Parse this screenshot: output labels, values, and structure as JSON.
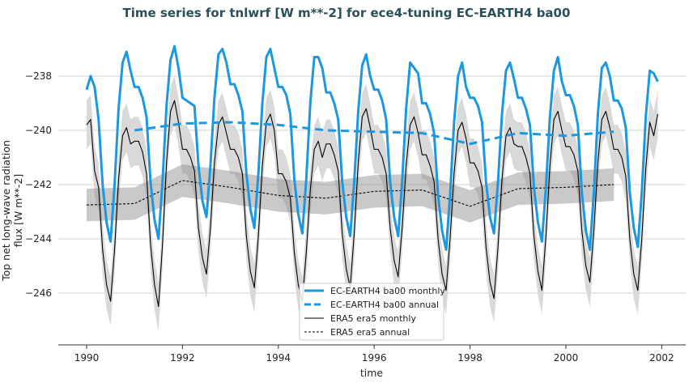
{
  "chart_data": {
    "type": "line",
    "title": "Time series for tnlwrf [W m**-2] for ece4-tuning EC-EARTH4 ba00",
    "xlabel": "time",
    "ylabel_line1": "Top net long-wave radiation",
    "ylabel_line2": "flux [W m**-2]",
    "xlim": [
      1988.6,
      2002.5
    ],
    "ylim": [
      -247.9,
      -236.1
    ],
    "xticks": [
      1990,
      1992,
      1994,
      1996,
      1998,
      2000,
      2002
    ],
    "xtick_labels": [
      "1990",
      "1992",
      "1994",
      "1996",
      "1998",
      "2000",
      "2002"
    ],
    "yticks": [
      -238,
      -240,
      -242,
      -244,
      -246
    ],
    "ytick_labels": [
      "−238",
      "−240",
      "−242",
      "−244",
      "−246"
    ],
    "grid": "horizontal",
    "legend_position": "bottom-center",
    "monthly_start": 1990.0,
    "series": [
      {
        "name": "EC-EARTH4 ba00 monthly",
        "color": "#1b98e0",
        "style": "solid",
        "values": [
          -238.5,
          -238.0,
          -238.4,
          -239.6,
          -242.0,
          -243.4,
          -244.1,
          -242.0,
          -239.2,
          -237.5,
          -237.1,
          -237.8,
          -238.4,
          -238.4,
          -238.8,
          -239.5,
          -241.9,
          -243.3,
          -244.0,
          -241.9,
          -239.1,
          -237.4,
          -236.9,
          -237.7,
          -238.8,
          -238.9,
          -239.0,
          -239.1,
          -241.3,
          -242.6,
          -243.2,
          -241.3,
          -238.8,
          -237.2,
          -237.0,
          -237.5,
          -238.3,
          -238.3,
          -238.7,
          -239.3,
          -241.6,
          -242.9,
          -243.6,
          -241.6,
          -239.0,
          -237.3,
          -237.0,
          -237.7,
          -238.4,
          -238.4,
          -238.7,
          -239.4,
          -241.8,
          -243.1,
          -243.8,
          -241.8,
          -239.0,
          -237.3,
          -237.3,
          -237.7,
          -238.6,
          -238.6,
          -239.0,
          -239.6,
          -241.9,
          -243.2,
          -243.9,
          -241.9,
          -239.3,
          -237.6,
          -237.2,
          -238.0,
          -238.5,
          -238.5,
          -238.9,
          -239.6,
          -241.9,
          -243.2,
          -243.9,
          -241.9,
          -239.2,
          -237.5,
          -237.7,
          -237.9,
          -239.0,
          -239.0,
          -239.4,
          -240.1,
          -242.4,
          -243.7,
          -244.4,
          -242.4,
          -239.7,
          -238.0,
          -237.5,
          -238.4,
          -238.8,
          -238.8,
          -239.1,
          -239.7,
          -241.9,
          -243.2,
          -243.8,
          -241.9,
          -239.4,
          -237.8,
          -237.5,
          -238.1,
          -238.8,
          -238.8,
          -239.2,
          -239.8,
          -242.1,
          -243.4,
          -244.1,
          -242.1,
          -239.5,
          -237.8,
          -237.3,
          -238.2,
          -238.7,
          -238.7,
          -239.1,
          -239.8,
          -242.3,
          -243.7,
          -244.4,
          -242.3,
          -239.4,
          -237.7,
          -237.5,
          -238.0,
          -238.9,
          -238.9,
          -239.2,
          -239.9,
          -242.3,
          -243.6,
          -244.3,
          -242.3,
          -239.5,
          -237.8,
          -237.9,
          -238.2
        ]
      },
      {
        "name": "EC-EARTH4 ba00 annual",
        "color": "#1b98e0",
        "style": "dashed",
        "x": [
          1991,
          1992,
          1993,
          1994,
          1995,
          1996,
          1997,
          1998,
          1999,
          2000,
          2001
        ],
        "values": [
          -240.0,
          -239.75,
          -239.7,
          -239.8,
          -240.0,
          -240.05,
          -240.1,
          -240.5,
          -240.1,
          -240.2,
          -240.05
        ]
      },
      {
        "name": "ERA5 era5 monthly",
        "color": "#000000",
        "style": "solid",
        "band_spread": 0.9,
        "values": [
          -239.8,
          -239.6,
          -241.5,
          -242.1,
          -244.4,
          -245.7,
          -246.3,
          -244.4,
          -241.8,
          -240.2,
          -239.9,
          -240.5,
          -240.4,
          -240.4,
          -240.8,
          -241.6,
          -244.2,
          -245.7,
          -246.5,
          -244.2,
          -241.2,
          -239.3,
          -238.9,
          -239.7,
          -240.7,
          -240.7,
          -241.0,
          -241.5,
          -243.6,
          -244.7,
          -245.3,
          -243.6,
          -241.2,
          -239.8,
          -239.5,
          -240.1,
          -240.7,
          -240.7,
          -241.0,
          -241.6,
          -243.9,
          -245.2,
          -245.8,
          -243.9,
          -241.3,
          -239.7,
          -239.4,
          -240.0,
          -241.6,
          -241.6,
          -241.9,
          -242.5,
          -244.5,
          -245.7,
          -246.3,
          -244.5,
          -242.2,
          -240.7,
          -240.4,
          -241.0,
          -240.5,
          -240.5,
          -240.9,
          -241.5,
          -243.8,
          -245.1,
          -245.8,
          -243.8,
          -241.2,
          -239.5,
          -239.2,
          -239.9,
          -240.7,
          -240.7,
          -241.0,
          -241.6,
          -243.6,
          -244.8,
          -245.4,
          -243.6,
          -241.3,
          -239.8,
          -239.5,
          -240.1,
          -240.9,
          -240.9,
          -241.3,
          -241.9,
          -244.0,
          -245.3,
          -245.9,
          -244.0,
          -241.6,
          -240.0,
          -239.7,
          -240.3,
          -241.2,
          -241.2,
          -241.5,
          -242.1,
          -244.3,
          -245.6,
          -246.2,
          -244.3,
          -241.8,
          -240.2,
          -239.9,
          -240.5,
          -240.6,
          -240.6,
          -241.0,
          -241.6,
          -243.9,
          -245.2,
          -245.9,
          -243.9,
          -241.3,
          -239.6,
          -239.3,
          -240.0,
          -240.6,
          -240.6,
          -240.9,
          -241.5,
          -243.7,
          -245.0,
          -245.6,
          -243.7,
          -241.2,
          -239.6,
          -239.3,
          -239.9,
          -240.7,
          -240.7,
          -241.0,
          -241.7,
          -244.0,
          -245.3,
          -245.9,
          -244.0,
          -241.4,
          -239.7,
          -240.2,
          -239.4
        ]
      },
      {
        "name": "ERA5 era5 annual",
        "color": "#000000",
        "style": "dashed",
        "band_spread": 0.6,
        "x": [
          1990,
          1991,
          1992,
          1993,
          1994,
          1995,
          1996,
          1997,
          1998,
          1999,
          2000,
          2001
        ],
        "values": [
          -242.75,
          -242.7,
          -241.85,
          -242.1,
          -242.4,
          -242.5,
          -242.25,
          -242.2,
          -242.8,
          -242.15,
          -242.1,
          -242.0
        ]
      }
    ]
  }
}
